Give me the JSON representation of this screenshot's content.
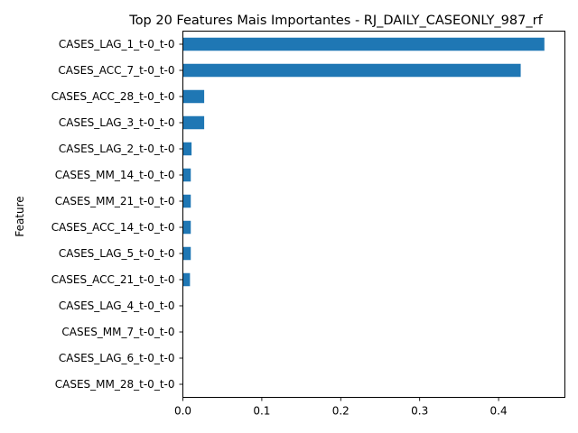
{
  "chart_data": {
    "type": "bar",
    "orientation": "horizontal",
    "title": "Top 20 Features Mais Importantes - RJ_DAILY_CASEONLY_987_rf",
    "xlabel": "",
    "ylabel": "Feature",
    "categories": [
      "CASES_LAG_1_t-0_t-0",
      "CASES_ACC_7_t-0_t-0",
      "CASES_ACC_28_t-0_t-0",
      "CASES_LAG_3_t-0_t-0",
      "CASES_LAG_2_t-0_t-0",
      "CASES_MM_14_t-0_t-0",
      "CASES_MM_21_t-0_t-0",
      "CASES_ACC_14_t-0_t-0",
      "CASES_LAG_5_t-0_t-0",
      "CASES_ACC_21_t-0_t-0",
      "CASES_LAG_4_t-0_t-0",
      "CASES_MM_7_t-0_t-0",
      "CASES_LAG_6_t-0_t-0",
      "CASES_MM_28_t-0_t-0"
    ],
    "values": [
      0.458,
      0.428,
      0.027,
      0.027,
      0.011,
      0.01,
      0.01,
      0.01,
      0.01,
      0.009,
      0.0005,
      0.0003,
      0.0002,
      0.0001
    ],
    "xlim": [
      0,
      0.484
    ],
    "xticks": [
      "0.0",
      "0.1",
      "0.2",
      "0.3",
      "0.4"
    ],
    "xtick_values": [
      0,
      0.1,
      0.2,
      0.3,
      0.4
    ],
    "bar_color": "#1f77b4",
    "grid": false,
    "legend": "none"
  }
}
